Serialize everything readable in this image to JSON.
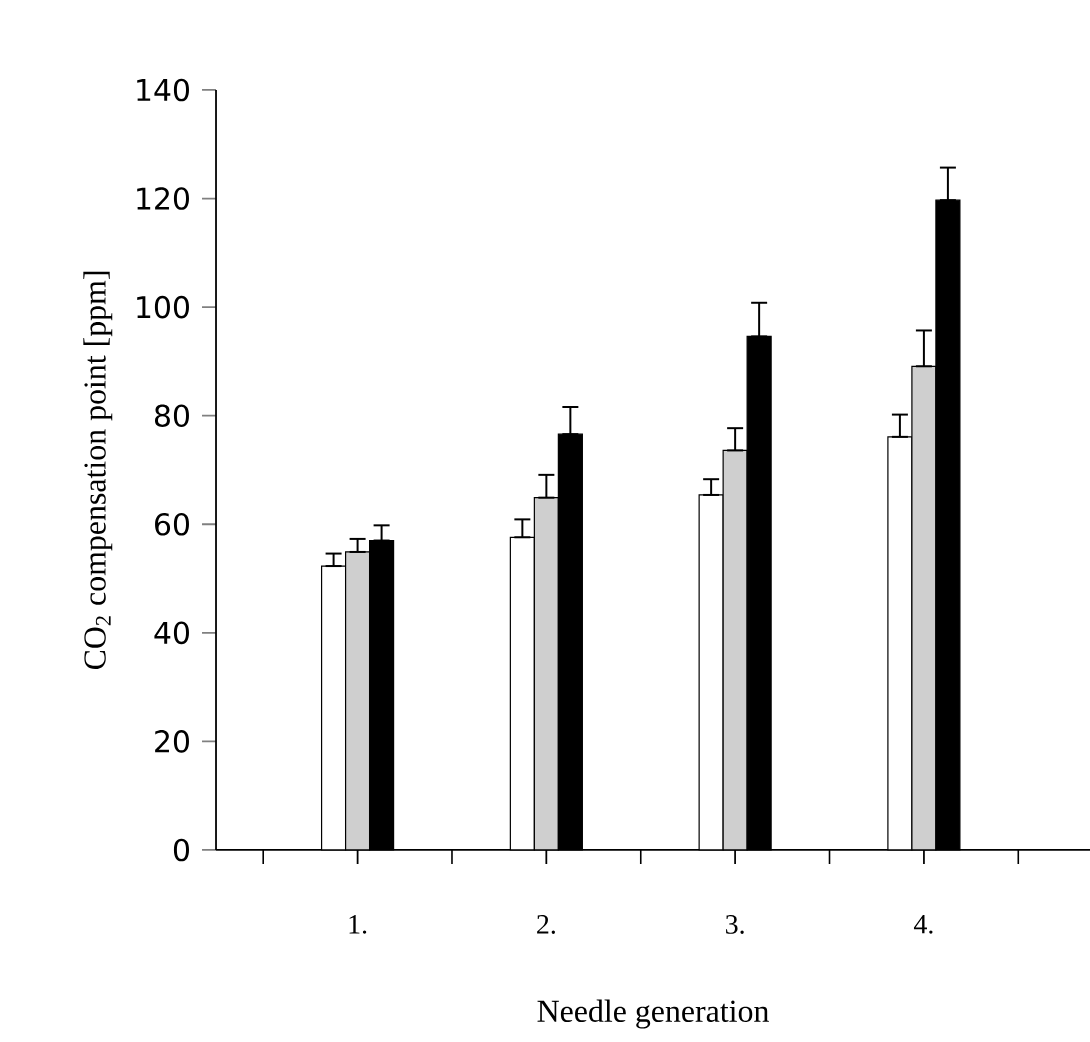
{
  "chart_data": {
    "type": "bar",
    "xlabel": "Needle generation",
    "ylabel": "CO$_{2}$ compensation point [ppm]",
    "categories": [
      "1.",
      "2.",
      "3.",
      "4."
    ],
    "series": [
      {
        "color": "#ffffff",
        "values": [
          52.3,
          57.6,
          65.4,
          76.1
        ],
        "errors": [
          [
            52.3,
            54.6
          ],
          [
            57.6,
            60.9
          ],
          [
            65.4,
            68.3
          ],
          [
            76.1,
            80.2
          ]
        ]
      },
      {
        "color": "#cfcfcf",
        "values": [
          54.9,
          64.9,
          73.6,
          89.1
        ],
        "errors": [
          [
            54.9,
            57.3
          ],
          [
            64.9,
            69.1
          ],
          [
            73.6,
            77.7
          ],
          [
            89.1,
            95.7
          ]
        ]
      },
      {
        "color": "#000000",
        "values": [
          57.0,
          76.6,
          94.6,
          119.7
        ],
        "errors": [
          [
            57.0,
            59.8
          ],
          [
            76.6,
            81.6
          ],
          [
            94.6,
            100.8
          ],
          [
            119.7,
            125.7
          ]
        ]
      }
    ],
    "ylim": [
      0,
      140
    ],
    "yticks": [
      0,
      20,
      40,
      60,
      80,
      100,
      120,
      140
    ]
  }
}
